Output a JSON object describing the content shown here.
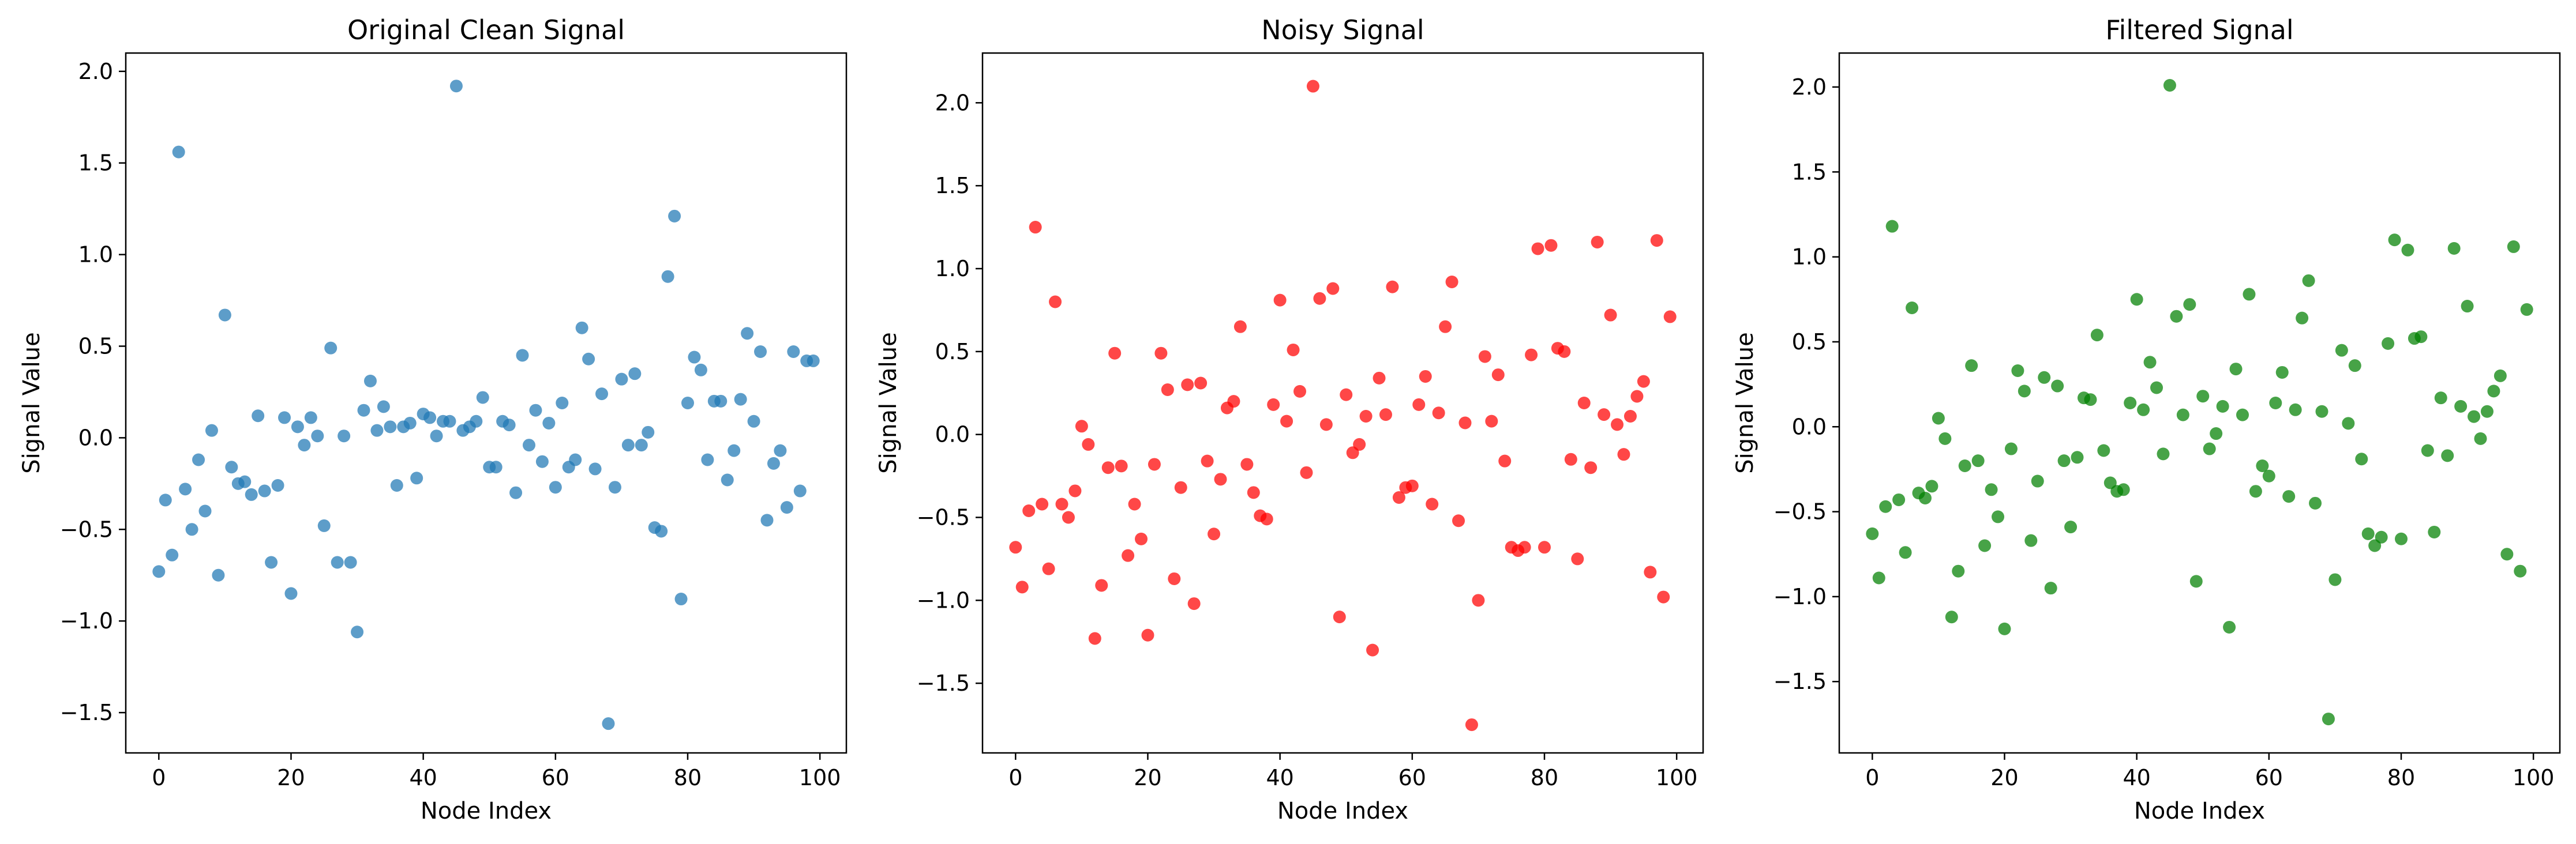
{
  "chart_data": [
    {
      "type": "scatter",
      "title": "Original Clean Signal",
      "xlabel": "Node Index",
      "ylabel": "Signal Value",
      "xlim": [
        -5,
        104
      ],
      "ylim": [
        -1.72,
        2.1
      ],
      "xticks": [
        0,
        20,
        40,
        60,
        80,
        100
      ],
      "yticks": [
        -1.5,
        -1.0,
        -0.5,
        0.0,
        0.5,
        1.0,
        1.5,
        2.0
      ],
      "ytick_labels": [
        "−1.5",
        "−1.0",
        "−0.5",
        "0.0",
        "0.5",
        "1.0",
        "1.5",
        "2.0"
      ],
      "grid": false,
      "color": "#1f77b4",
      "series": [
        {
          "x": [
            0,
            1,
            2,
            3,
            4,
            5,
            6,
            7,
            8,
            9,
            10,
            11,
            12,
            13,
            14,
            15,
            16,
            17,
            18,
            19,
            20,
            21,
            22,
            23,
            24,
            25,
            26,
            27,
            28,
            29,
            30,
            31,
            32,
            33,
            34,
            35,
            36,
            37,
            38,
            39,
            40,
            41,
            42,
            43,
            44,
            45,
            46,
            47,
            48,
            49,
            50,
            51,
            52,
            53,
            54,
            55,
            56,
            57,
            58,
            59,
            60,
            61,
            62,
            63,
            64,
            65,
            66,
            67,
            68,
            69,
            70,
            71,
            72,
            73,
            74,
            75,
            76,
            77,
            78,
            79,
            80,
            81,
            82,
            83,
            84,
            85,
            86,
            87,
            88,
            89,
            90,
            91,
            92,
            93,
            94,
            95,
            96,
            97,
            98,
            99
          ],
          "y": [
            -0.73,
            -0.34,
            -0.64,
            1.56,
            -0.28,
            -0.5,
            -0.12,
            -0.4,
            0.04,
            -0.75,
            0.67,
            -0.16,
            -0.25,
            -0.24,
            -0.31,
            0.12,
            -0.29,
            -0.68,
            -0.26,
            0.11,
            -0.85,
            0.06,
            -0.04,
            0.11,
            0.01,
            -0.48,
            0.49,
            -0.68,
            0.01,
            -0.68,
            -1.06,
            0.15,
            0.31,
            0.04,
            0.17,
            0.06,
            -0.26,
            0.06,
            0.08,
            -0.22,
            0.13,
            0.11,
            0.01,
            0.09,
            0.09,
            1.92,
            0.04,
            0.06,
            0.09,
            0.22,
            -0.16,
            -0.16,
            0.09,
            0.07,
            -0.3,
            0.45,
            -0.04,
            0.15,
            -0.13,
            0.08,
            -0.27,
            0.19,
            -0.16,
            -0.12,
            0.6,
            0.43,
            -0.17,
            0.24,
            -1.56,
            -0.27,
            0.32,
            -0.04,
            0.35,
            -0.04,
            0.03,
            -0.49,
            -0.51,
            0.88,
            1.21,
            -0.88,
            0.19,
            0.44,
            0.37,
            -0.12,
            0.2,
            0.2,
            -0.23,
            -0.07,
            0.21,
            0.57,
            0.09,
            0.47,
            -0.45,
            -0.14,
            -0.07,
            -0.38,
            0.47,
            -0.29,
            0.42,
            0.42
          ]
        }
      ]
    },
    {
      "type": "scatter",
      "title": "Noisy Signal",
      "xlabel": "Node Index",
      "ylabel": "Signal Value",
      "xlim": [
        -5,
        104
      ],
      "ylim": [
        -1.92,
        2.3
      ],
      "xticks": [
        0,
        20,
        40,
        60,
        80,
        100
      ],
      "yticks": [
        -1.5,
        -1.0,
        -0.5,
        0.0,
        0.5,
        1.0,
        1.5,
        2.0
      ],
      "ytick_labels": [
        "−1.5",
        "−1.0",
        "−0.5",
        "0.0",
        "0.5",
        "1.0",
        "1.5",
        "2.0"
      ],
      "grid": false,
      "color": "#ff0000",
      "series": [
        {
          "x": [
            0,
            1,
            2,
            3,
            4,
            5,
            6,
            7,
            8,
            9,
            10,
            11,
            12,
            13,
            14,
            15,
            16,
            17,
            18,
            19,
            20,
            21,
            22,
            23,
            24,
            25,
            26,
            27,
            28,
            29,
            30,
            31,
            32,
            33,
            34,
            35,
            36,
            37,
            38,
            39,
            40,
            41,
            42,
            43,
            44,
            45,
            46,
            47,
            48,
            49,
            50,
            51,
            52,
            53,
            54,
            55,
            56,
            57,
            58,
            59,
            60,
            61,
            62,
            63,
            64,
            65,
            66,
            67,
            68,
            69,
            70,
            71,
            72,
            73,
            74,
            75,
            76,
            77,
            78,
            79,
            80,
            81,
            82,
            83,
            84,
            85,
            86,
            87,
            88,
            89,
            90,
            91,
            92,
            93,
            94,
            95,
            96,
            97,
            98,
            99
          ],
          "y": [
            -0.68,
            -0.92,
            -0.46,
            1.25,
            -0.42,
            -0.81,
            0.8,
            -0.42,
            -0.5,
            -0.34,
            0.05,
            -0.06,
            -1.23,
            -0.91,
            -0.2,
            0.49,
            -0.19,
            -0.73,
            -0.42,
            -0.63,
            -1.21,
            -0.18,
            0.49,
            0.27,
            -0.87,
            -0.32,
            0.3,
            -1.02,
            0.31,
            -0.16,
            -0.6,
            -0.27,
            0.16,
            0.2,
            0.65,
            -0.18,
            -0.35,
            -0.49,
            -0.51,
            0.18,
            0.81,
            0.08,
            0.51,
            0.26,
            -0.23,
            2.1,
            0.82,
            0.06,
            0.88,
            -1.1,
            0.24,
            -0.11,
            -0.06,
            0.11,
            -1.3,
            0.34,
            0.12,
            0.89,
            -0.38,
            -0.32,
            -0.31,
            0.18,
            0.35,
            -0.42,
            0.13,
            0.65,
            0.92,
            -0.52,
            0.07,
            -1.75,
            -1.0,
            0.47,
            0.08,
            0.36,
            -0.16,
            -0.68,
            -0.7,
            -0.68,
            0.48,
            1.12,
            -0.68,
            1.14,
            0.52,
            0.5,
            -0.15,
            -0.75,
            0.19,
            -0.2,
            1.16,
            0.12,
            0.72,
            0.06,
            -0.12,
            0.11,
            0.23,
            0.32,
            -0.83,
            1.17,
            -0.98,
            0.71
          ]
        }
      ]
    },
    {
      "type": "scatter",
      "title": "Filtered Signal",
      "xlabel": "Node Index",
      "ylabel": "Signal Value",
      "xlim": [
        -5,
        104
      ],
      "ylim": [
        -1.92,
        2.2
      ],
      "xticks": [
        0,
        20,
        40,
        60,
        80,
        100
      ],
      "yticks": [
        -1.5,
        -1.0,
        -0.5,
        0.0,
        0.5,
        1.0,
        1.5,
        2.0
      ],
      "ytick_labels": [
        "−1.5",
        "−1.0",
        "−0.5",
        "0.0",
        "0.5",
        "1.0",
        "1.5",
        "2.0"
      ],
      "grid": false,
      "color": "#008000",
      "series": [
        {
          "x": [
            0,
            1,
            2,
            3,
            4,
            5,
            6,
            7,
            8,
            9,
            10,
            11,
            12,
            13,
            14,
            15,
            16,
            17,
            18,
            19,
            20,
            21,
            22,
            23,
            24,
            25,
            26,
            27,
            28,
            29,
            30,
            31,
            32,
            33,
            34,
            35,
            36,
            37,
            38,
            39,
            40,
            41,
            42,
            43,
            44,
            45,
            46,
            47,
            48,
            49,
            50,
            51,
            52,
            53,
            54,
            55,
            56,
            57,
            58,
            59,
            60,
            61,
            62,
            63,
            64,
            65,
            66,
            67,
            68,
            69,
            70,
            71,
            72,
            73,
            74,
            75,
            76,
            77,
            78,
            79,
            80,
            81,
            82,
            83,
            84,
            85,
            86,
            87,
            88,
            89,
            90,
            91,
            92,
            93,
            94,
            95,
            96,
            97,
            98,
            99
          ],
          "y": [
            -0.63,
            -0.89,
            -0.47,
            1.18,
            -0.43,
            -0.74,
            0.7,
            -0.39,
            -0.42,
            -0.35,
            0.05,
            -0.07,
            -1.12,
            -0.85,
            -0.23,
            0.36,
            -0.2,
            -0.7,
            -0.37,
            -0.53,
            -1.19,
            -0.13,
            0.33,
            0.21,
            -0.67,
            -0.32,
            0.29,
            -0.95,
            0.24,
            -0.2,
            -0.59,
            -0.18,
            0.17,
            0.16,
            0.54,
            -0.14,
            -0.33,
            -0.38,
            -0.37,
            0.14,
            0.75,
            0.1,
            0.38,
            0.23,
            -0.16,
            2.01,
            0.65,
            0.07,
            0.72,
            -0.91,
            0.18,
            -0.13,
            -0.04,
            0.12,
            -1.18,
            0.34,
            0.07,
            0.78,
            -0.38,
            -0.23,
            -0.29,
            0.14,
            0.32,
            -0.41,
            0.1,
            0.64,
            0.86,
            -0.45,
            0.09,
            -1.72,
            -0.9,
            0.45,
            0.02,
            0.36,
            -0.19,
            -0.63,
            -0.7,
            -0.65,
            0.49,
            1.1,
            -0.66,
            1.04,
            0.52,
            0.53,
            -0.14,
            -0.62,
            0.17,
            -0.17,
            1.05,
            0.12,
            0.71,
            0.06,
            -0.07,
            0.09,
            0.21,
            0.3,
            -0.75,
            1.06,
            -0.85,
            0.69
          ]
        }
      ]
    }
  ]
}
